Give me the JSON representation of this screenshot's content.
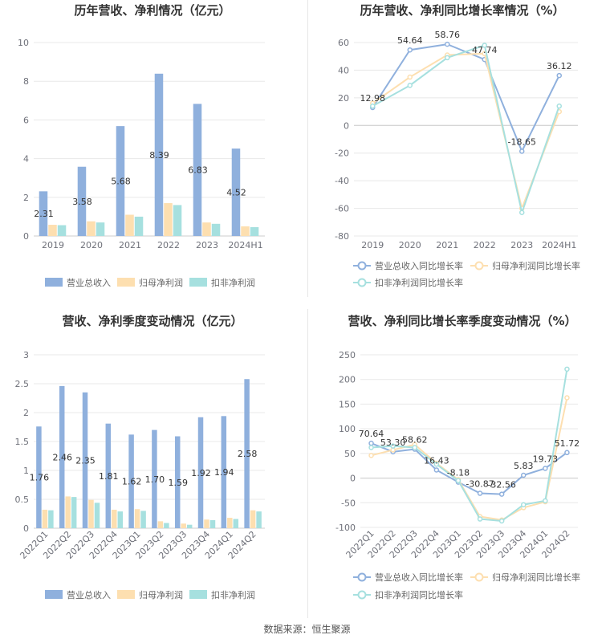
{
  "colors": {
    "revenue": "#8fb0dd",
    "net_profit": "#fddfb0",
    "deducted_profit": "#a6e0df",
    "revenue_line": "#8fb0dd",
    "net_line": "#fddfb0",
    "deducted_line": "#a6e0df"
  },
  "source": "数据来源：恒生聚源",
  "chart_data": [
    {
      "type": "bar",
      "title": "历年营收、净利情况（亿元）",
      "categories": [
        "2019",
        "2020",
        "2021",
        "2022",
        "2023",
        "2024H1"
      ],
      "ylim": [
        0,
        10
      ],
      "yticks": [
        0,
        2,
        4,
        6,
        8,
        10
      ],
      "series": [
        {
          "name": "营业总收入",
          "values": [
            2.31,
            3.58,
            5.68,
            8.39,
            6.83,
            4.52
          ],
          "labels": [
            "2.31",
            "3.58",
            "5.68",
            "8.39",
            "6.83",
            "4.52"
          ]
        },
        {
          "name": "归母净利润",
          "values": [
            0.58,
            0.76,
            1.1,
            1.7,
            0.7,
            0.5
          ]
        },
        {
          "name": "扣非净利润",
          "values": [
            0.56,
            0.7,
            1.0,
            1.6,
            0.63,
            0.46
          ]
        }
      ],
      "legend": "bottom"
    },
    {
      "type": "line",
      "title": "历年营收、净利同比增长率情况（%）",
      "categories": [
        "2019",
        "2020",
        "2021",
        "2022",
        "2023",
        "2024H1"
      ],
      "ylim": [
        -80,
        60
      ],
      "yticks": [
        -80,
        -60,
        -40,
        -20,
        0,
        20,
        40,
        60
      ],
      "series": [
        {
          "name": "营业总收入同比增长率",
          "values": [
            12.98,
            54.64,
            58.76,
            47.74,
            -18.65,
            36.12
          ],
          "labels": [
            "12.98",
            "54.64",
            "58.76",
            "47.74",
            "-18.65",
            "36.12"
          ]
        },
        {
          "name": "归母净利润同比增长率",
          "values": [
            16,
            35,
            51,
            52,
            -60,
            10
          ]
        },
        {
          "name": "扣非净利润同比增长率",
          "values": [
            14,
            29,
            49,
            58,
            -63,
            14
          ]
        }
      ],
      "legend": "bottom"
    },
    {
      "type": "bar",
      "title": "营收、净利季度变动情况（亿元）",
      "categories": [
        "2022Q1",
        "2022Q2",
        "2022Q3",
        "2022Q4",
        "2023Q1",
        "2023Q2",
        "2023Q3",
        "2023Q4",
        "2024Q1",
        "2024Q2"
      ],
      "ylim": [
        0,
        3
      ],
      "yticks": [
        0,
        0.5,
        1,
        1.5,
        2,
        2.5,
        3
      ],
      "series": [
        {
          "name": "营业总收入",
          "values": [
            1.76,
            2.46,
            2.35,
            1.81,
            1.62,
            1.7,
            1.59,
            1.92,
            1.94,
            2.58
          ],
          "labels": [
            "1.76",
            "2.46",
            "2.35",
            "1.81",
            "1.62",
            "1.70",
            "1.59",
            "1.92",
            "1.94",
            "2.58"
          ]
        },
        {
          "name": "归母净利润",
          "values": [
            0.32,
            0.55,
            0.49,
            0.32,
            0.33,
            0.12,
            0.08,
            0.15,
            0.18,
            0.31
          ]
        },
        {
          "name": "扣非净利润",
          "values": [
            0.31,
            0.54,
            0.44,
            0.29,
            0.3,
            0.09,
            0.06,
            0.14,
            0.16,
            0.29
          ]
        }
      ],
      "legend": "bottom"
    },
    {
      "type": "line",
      "title": "营收、净利同比增长率季度变动情况（%）",
      "categories": [
        "2022Q1",
        "2022Q2",
        "2022Q3",
        "2022Q4",
        "2023Q1",
        "2023Q2",
        "2023Q3",
        "2023Q4",
        "2024Q1",
        "2024Q2"
      ],
      "ylim": [
        -100,
        250
      ],
      "yticks": [
        -100,
        -50,
        0,
        50,
        100,
        150,
        200,
        250
      ],
      "series": [
        {
          "name": "营业总收入同比增长率",
          "values": [
            70.64,
            53.3,
            58.62,
            16.43,
            -8.18,
            -30.87,
            -32.56,
            5.83,
            19.73,
            51.72
          ],
          "labels": [
            "70.64",
            "53.30",
            "58.62",
            "16.43",
            "-8.18",
            "-30.87",
            "-32.56",
            "5.83",
            "19.73",
            "51.72"
          ]
        },
        {
          "name": "归母净利润同比增长率",
          "values": [
            46,
            57,
            68,
            30,
            -3,
            -78,
            -85,
            -60,
            -48,
            163
          ]
        },
        {
          "name": "扣非净利润同比增长率",
          "values": [
            62,
            65,
            62,
            28,
            -5,
            -83,
            -87,
            -54,
            -46,
            221
          ]
        }
      ],
      "legend": "bottom"
    }
  ]
}
